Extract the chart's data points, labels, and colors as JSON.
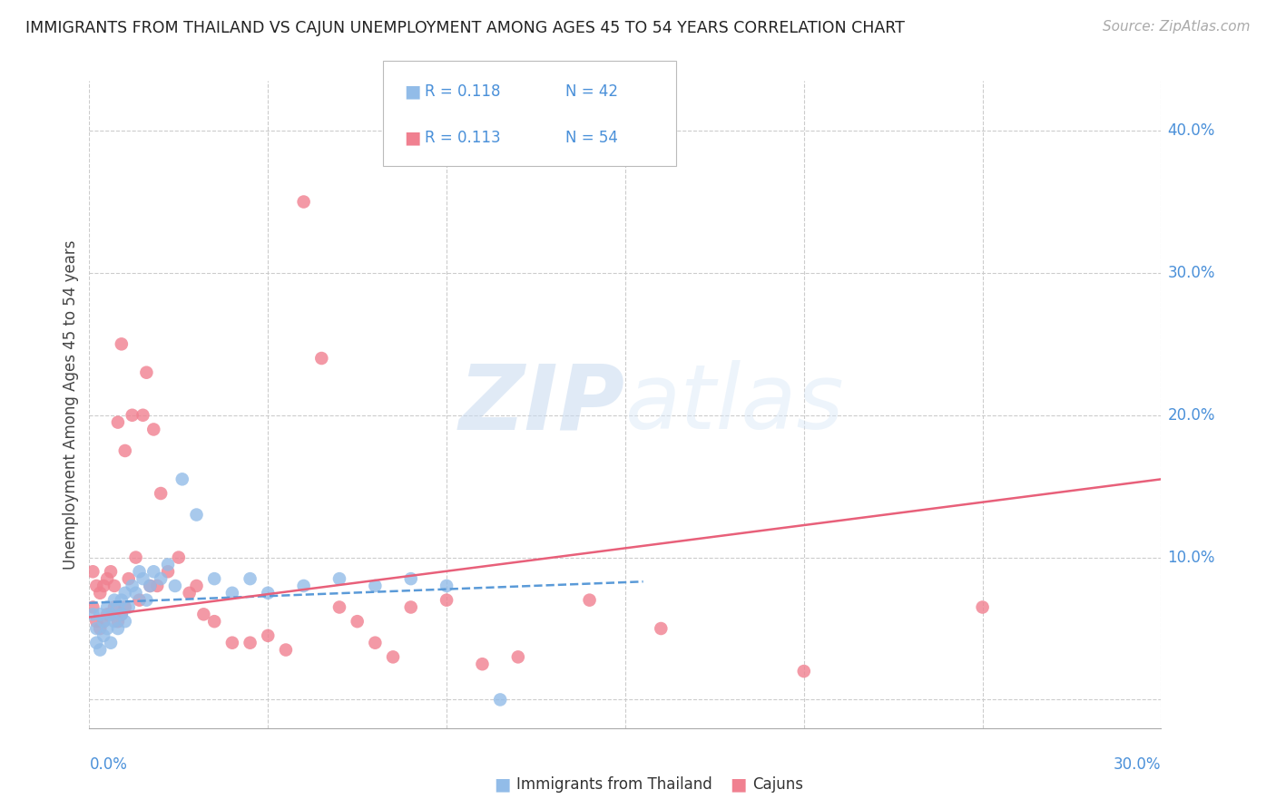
{
  "title": "IMMIGRANTS FROM THAILAND VS CAJUN UNEMPLOYMENT AMONG AGES 45 TO 54 YEARS CORRELATION CHART",
  "source": "Source: ZipAtlas.com",
  "ylabel": "Unemployment Among Ages 45 to 54 years",
  "xlim": [
    0.0,
    0.3
  ],
  "ylim": [
    -0.02,
    0.435
  ],
  "yticks": [
    0.0,
    0.1,
    0.2,
    0.3,
    0.4
  ],
  "ytick_labels": [
    "0.0%",
    "10.0%",
    "20.0%",
    "30.0%",
    "40.0%"
  ],
  "xticks": [
    0.0,
    0.05,
    0.1,
    0.15,
    0.2,
    0.25,
    0.3
  ],
  "background_color": "#ffffff",
  "watermark_zip": "ZIP",
  "watermark_atlas": "atlas",
  "legend_r1": "R = 0.118",
  "legend_n1": "N = 42",
  "legend_r2": "R = 0.113",
  "legend_n2": "N = 54",
  "series1_color": "#92bce8",
  "series2_color": "#f08090",
  "line1_color": "#5a9ad8",
  "line2_color": "#e8607a",
  "series1_label": "Immigrants from Thailand",
  "series2_label": "Cajuns",
  "series1_x": [
    0.001,
    0.002,
    0.002,
    0.003,
    0.003,
    0.004,
    0.004,
    0.005,
    0.005,
    0.006,
    0.006,
    0.007,
    0.007,
    0.008,
    0.008,
    0.009,
    0.009,
    0.01,
    0.01,
    0.011,
    0.012,
    0.013,
    0.014,
    0.015,
    0.016,
    0.017,
    0.018,
    0.02,
    0.022,
    0.024,
    0.026,
    0.03,
    0.035,
    0.04,
    0.045,
    0.05,
    0.06,
    0.07,
    0.08,
    0.09,
    0.1,
    0.115
  ],
  "series1_y": [
    0.06,
    0.04,
    0.05,
    0.035,
    0.06,
    0.045,
    0.055,
    0.05,
    0.065,
    0.04,
    0.06,
    0.055,
    0.07,
    0.05,
    0.065,
    0.06,
    0.07,
    0.055,
    0.075,
    0.065,
    0.08,
    0.075,
    0.09,
    0.085,
    0.07,
    0.08,
    0.09,
    0.085,
    0.095,
    0.08,
    0.155,
    0.13,
    0.085,
    0.075,
    0.085,
    0.075,
    0.08,
    0.085,
    0.08,
    0.085,
    0.08,
    0.0
  ],
  "series2_x": [
    0.001,
    0.001,
    0.002,
    0.002,
    0.003,
    0.003,
    0.004,
    0.004,
    0.005,
    0.005,
    0.006,
    0.006,
    0.007,
    0.007,
    0.008,
    0.008,
    0.009,
    0.009,
    0.01,
    0.01,
    0.011,
    0.012,
    0.013,
    0.014,
    0.015,
    0.016,
    0.017,
    0.018,
    0.019,
    0.02,
    0.022,
    0.025,
    0.028,
    0.03,
    0.032,
    0.035,
    0.04,
    0.045,
    0.05,
    0.055,
    0.06,
    0.065,
    0.07,
    0.075,
    0.08,
    0.085,
    0.09,
    0.1,
    0.11,
    0.12,
    0.14,
    0.16,
    0.2,
    0.25
  ],
  "series2_y": [
    0.065,
    0.09,
    0.055,
    0.08,
    0.05,
    0.075,
    0.055,
    0.08,
    0.06,
    0.085,
    0.06,
    0.09,
    0.065,
    0.08,
    0.055,
    0.195,
    0.06,
    0.25,
    0.065,
    0.175,
    0.085,
    0.2,
    0.1,
    0.07,
    0.2,
    0.23,
    0.08,
    0.19,
    0.08,
    0.145,
    0.09,
    0.1,
    0.075,
    0.08,
    0.06,
    0.055,
    0.04,
    0.04,
    0.045,
    0.035,
    0.35,
    0.24,
    0.065,
    0.055,
    0.04,
    0.03,
    0.065,
    0.07,
    0.025,
    0.03,
    0.07,
    0.05,
    0.02,
    0.065
  ],
  "line1_x_start": 0.0,
  "line1_x_end": 0.155,
  "line1_y_start": 0.068,
  "line1_y_end": 0.083,
  "line2_x_start": 0.0,
  "line2_x_end": 0.3,
  "line2_y_start": 0.058,
  "line2_y_end": 0.155
}
